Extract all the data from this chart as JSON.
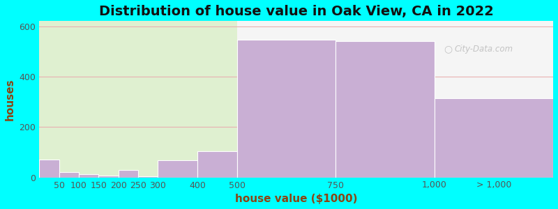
{
  "title": "Distribution of house value in Oak View, CA in 2022",
  "xlabel": "house value ($1000)",
  "ylabel": "houses",
  "background_color": "#00FFFF",
  "plot_bg_color_left": "#dff0d0",
  "plot_bg_color_right": "#f5f5f5",
  "bar_color": "#c9afd4",
  "bar_edge_color": "#ffffff",
  "categories": [
    "50",
    "100",
    "150",
    "200",
    "250",
    "300",
    "400",
    "500",
    "750",
    "1,000",
    "> 1,000"
  ],
  "bar_lefts": [
    0,
    50,
    100,
    150,
    200,
    250,
    300,
    400,
    500,
    750,
    1000
  ],
  "bar_widths": [
    50,
    50,
    50,
    50,
    50,
    50,
    100,
    100,
    250,
    250,
    300
  ],
  "values": [
    72,
    22,
    12,
    8,
    30,
    5,
    68,
    105,
    545,
    540,
    315
  ],
  "split_x": 500,
  "xmax": 1300,
  "ylim": [
    0,
    620
  ],
  "yticks": [
    0,
    200,
    400,
    600
  ],
  "xtick_positions": [
    50,
    100,
    150,
    200,
    250,
    300,
    400,
    500,
    750,
    1000,
    1150
  ],
  "xtick_labels": [
    "50",
    "100",
    "150",
    "200",
    "250",
    "300",
    "400",
    "500",
    "750",
    "1,000",
    "> 1,000"
  ],
  "grid_color": "#e8b0b0",
  "title_fontsize": 14,
  "axis_label_fontsize": 11,
  "tick_fontsize": 9,
  "watermark_text": "City-Data.com"
}
